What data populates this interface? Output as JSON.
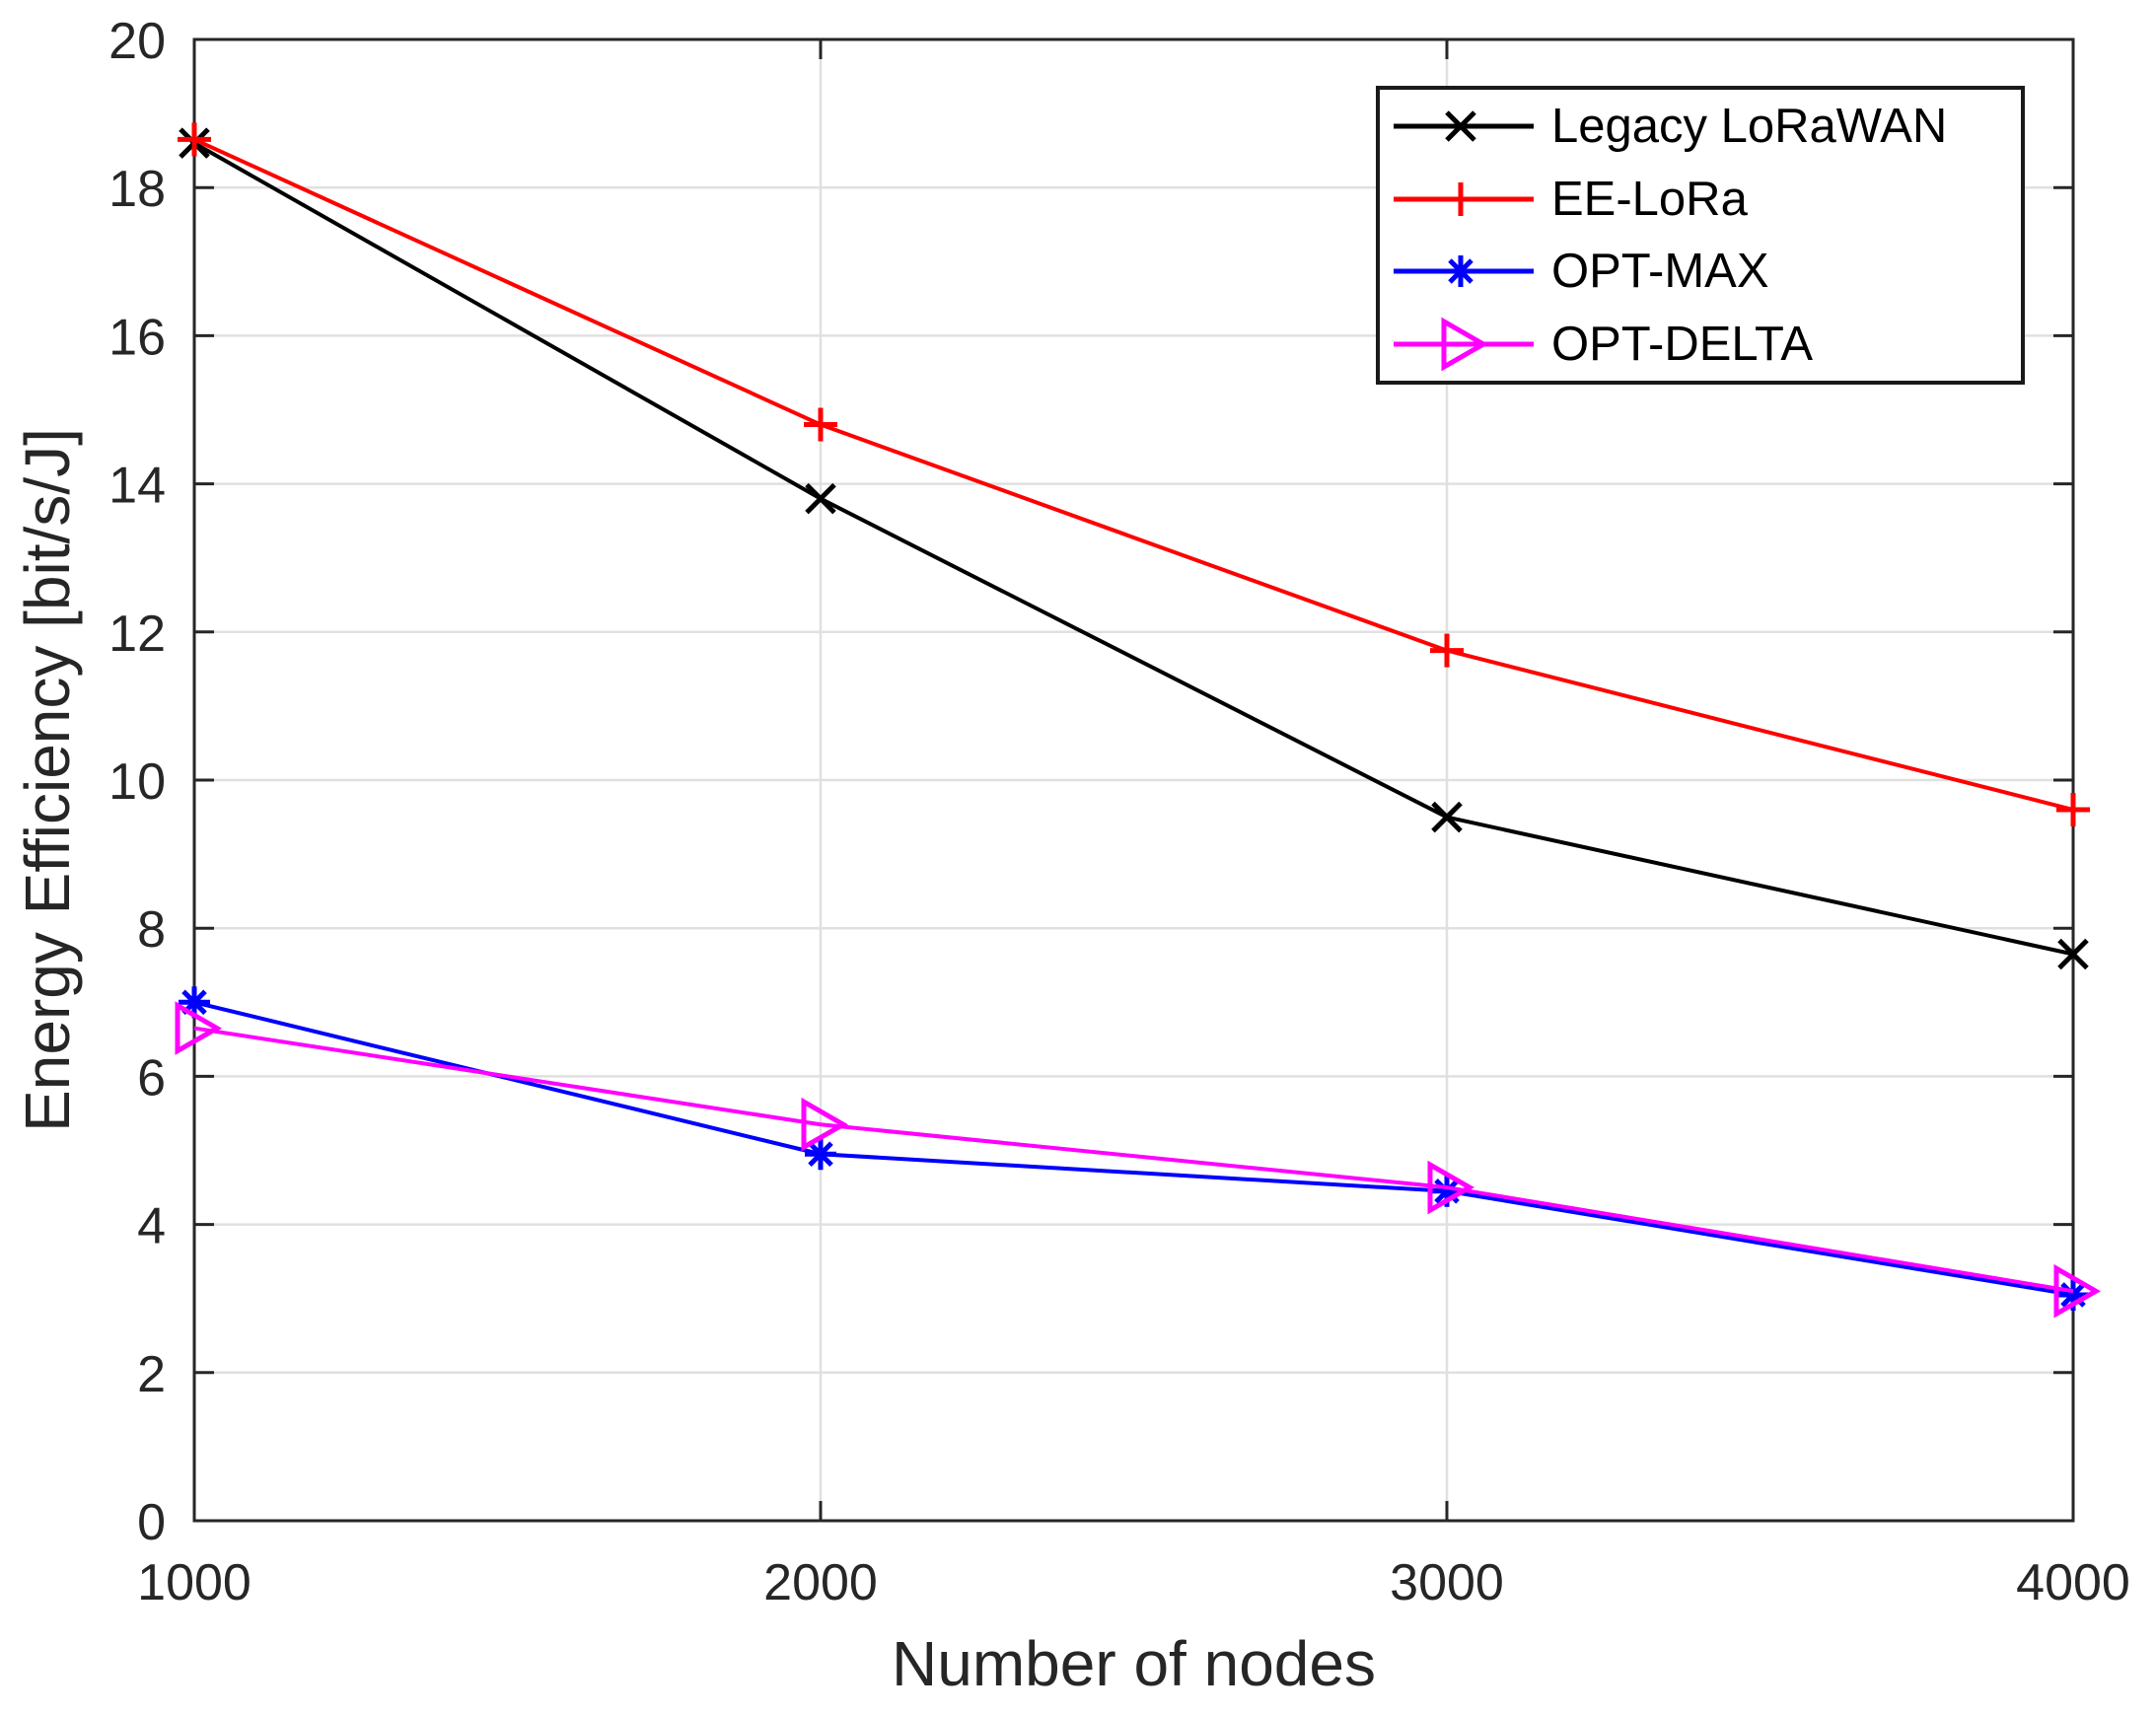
{
  "figure": {
    "background": "#ffffff",
    "axis_color": "#262626",
    "grid_color": "#e0e0e0",
    "legend_border_color": "#1a1a1a",
    "tick_label_color": "#262626"
  },
  "chart_data": {
    "type": "line",
    "title": "",
    "xlabel": "Number of nodes",
    "ylabel": "Energy Efficiency [bit/s/J]",
    "x": [
      1000,
      2000,
      3000,
      4000
    ],
    "xlim": [
      1000,
      4000
    ],
    "ylim": [
      0,
      20
    ],
    "xticks": [
      1000,
      2000,
      3000,
      4000
    ],
    "yticks": [
      0,
      2,
      4,
      6,
      8,
      10,
      12,
      14,
      16,
      18,
      20
    ],
    "grid": true,
    "legend_position": "top-right",
    "series": [
      {
        "name": "Legacy LoRaWAN",
        "color": "#000000",
        "marker": "x",
        "values": [
          18.6,
          13.8,
          9.5,
          7.65
        ]
      },
      {
        "name": "EE-LoRa",
        "color": "#ff0000",
        "marker": "plus",
        "values": [
          18.65,
          14.8,
          11.75,
          9.6
        ]
      },
      {
        "name": "OPT-MAX",
        "color": "#0000ff",
        "marker": "asterisk",
        "values": [
          7.0,
          4.95,
          4.45,
          3.05
        ]
      },
      {
        "name": "OPT-DELTA",
        "color": "#ff00ff",
        "marker": "triangle-right",
        "values": [
          6.65,
          5.35,
          4.5,
          3.1
        ]
      }
    ]
  }
}
